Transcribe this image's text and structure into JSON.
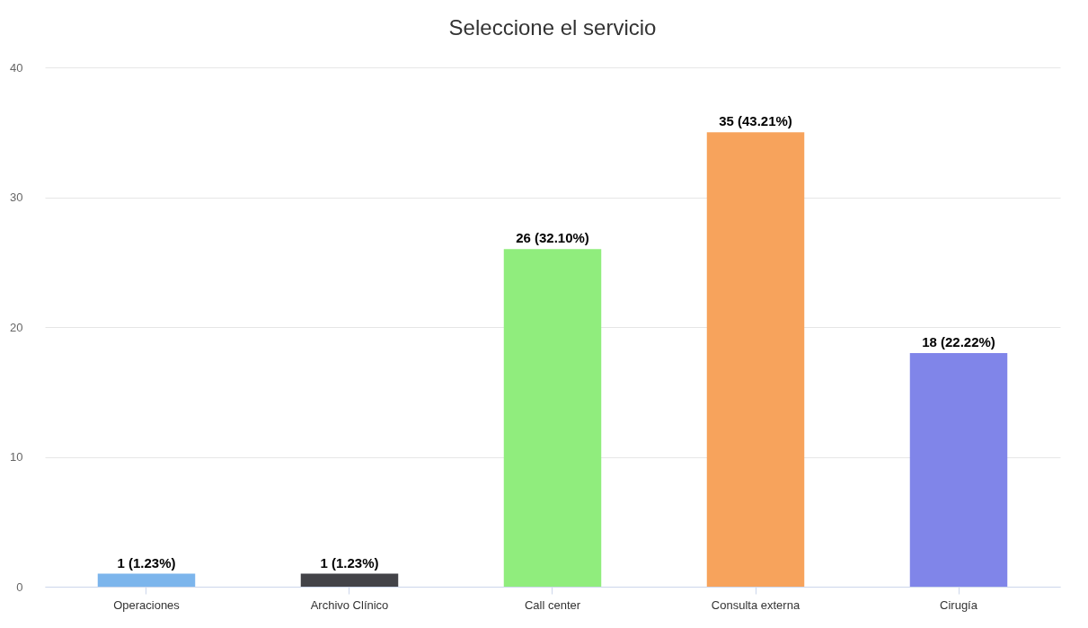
{
  "chart_data": {
    "type": "bar",
    "title": "Seleccione el servicio",
    "categories": [
      "Operaciones",
      "Archivo Clínico",
      "Call center",
      "Consulta externa",
      "Cirugía"
    ],
    "values": [
      1,
      1,
      26,
      35,
      18
    ],
    "colors": [
      "#7cb5ec",
      "#434348",
      "#90ed7d",
      "#f7a35c",
      "#8085e9"
    ],
    "value_labels": [
      "1 (1.23%)",
      "1 (1.23%)",
      "26 (32.10%)",
      "35 (43.21%)",
      "18 (22.22%)"
    ],
    "ylim": [
      0,
      40
    ],
    "yticks": [
      0,
      10,
      20,
      30,
      40
    ],
    "grid": "y"
  }
}
